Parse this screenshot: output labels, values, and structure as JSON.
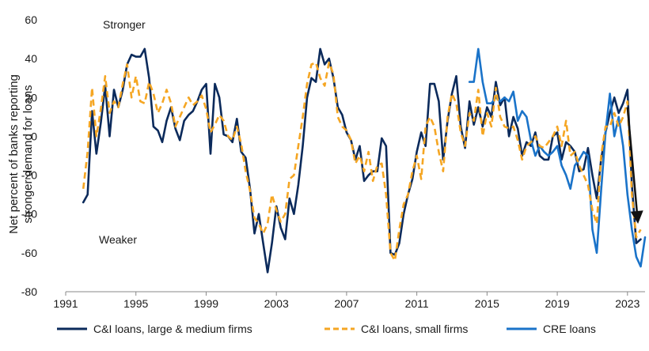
{
  "chart_data": {
    "type": "line",
    "ylabel_lines": [
      "Net percent of banks reporting",
      "stronger demand for loans"
    ],
    "xlim": [
      1991,
      2024
    ],
    "ylim": [
      -80,
      60
    ],
    "x_ticks": [
      1991,
      1995,
      1999,
      2003,
      2007,
      2011,
      2015,
      2019,
      2023
    ],
    "y_ticks": [
      -80,
      -60,
      -40,
      -20,
      0,
      20,
      40,
      60
    ],
    "annotations": {
      "upper": "Stronger",
      "lower": "Weaker"
    },
    "arrow": {
      "from": [
        2023.0,
        15
      ],
      "to": [
        2023.6,
        -45
      ],
      "color": "#111111"
    },
    "legend_position": "bottom",
    "series": [
      {
        "name": "C&I loans, large & medium firms",
        "color": "#0b2a5b",
        "style": "solid",
        "points": [
          [
            1992.0,
            -34
          ],
          [
            1992.25,
            -30
          ],
          [
            1992.5,
            13
          ],
          [
            1992.75,
            -9
          ],
          [
            1993.0,
            7
          ],
          [
            1993.25,
            26
          ],
          [
            1993.5,
            0
          ],
          [
            1993.75,
            24
          ],
          [
            1994.0,
            15
          ],
          [
            1994.25,
            24
          ],
          [
            1994.5,
            37
          ],
          [
            1994.75,
            42
          ],
          [
            1995.0,
            41
          ],
          [
            1995.25,
            41
          ],
          [
            1995.5,
            45
          ],
          [
            1995.75,
            30
          ],
          [
            1996.0,
            5
          ],
          [
            1996.25,
            3
          ],
          [
            1996.5,
            -3
          ],
          [
            1996.75,
            8
          ],
          [
            1997.0,
            15
          ],
          [
            1997.25,
            4
          ],
          [
            1997.5,
            -2
          ],
          [
            1997.75,
            8
          ],
          [
            1998.0,
            11
          ],
          [
            1998.25,
            13
          ],
          [
            1998.5,
            18
          ],
          [
            1998.75,
            24
          ],
          [
            1999.0,
            27
          ],
          [
            1999.25,
            -9
          ],
          [
            1999.5,
            27
          ],
          [
            1999.75,
            20
          ],
          [
            2000.0,
            1
          ],
          [
            2000.25,
            0
          ],
          [
            2000.5,
            -3
          ],
          [
            2000.75,
            9
          ],
          [
            2001.0,
            -8
          ],
          [
            2001.25,
            -11
          ],
          [
            2001.5,
            -27
          ],
          [
            2001.75,
            -50
          ],
          [
            2002.0,
            -40
          ],
          [
            2002.25,
            -55
          ],
          [
            2002.5,
            -70
          ],
          [
            2002.75,
            -55
          ],
          [
            2003.0,
            -36
          ],
          [
            2003.25,
            -47
          ],
          [
            2003.5,
            -53
          ],
          [
            2003.75,
            -32
          ],
          [
            2004.0,
            -40
          ],
          [
            2004.25,
            -25
          ],
          [
            2004.5,
            -5
          ],
          [
            2004.75,
            20
          ],
          [
            2005.0,
            30
          ],
          [
            2005.25,
            28
          ],
          [
            2005.5,
            45
          ],
          [
            2005.75,
            37
          ],
          [
            2006.0,
            40
          ],
          [
            2006.25,
            30
          ],
          [
            2006.5,
            15
          ],
          [
            2006.75,
            11
          ],
          [
            2007.0,
            2
          ],
          [
            2007.25,
            -2
          ],
          [
            2007.5,
            -12
          ],
          [
            2007.75,
            -5
          ],
          [
            2008.0,
            -23
          ],
          [
            2008.25,
            -20
          ],
          [
            2008.5,
            -18
          ],
          [
            2008.75,
            -18
          ],
          [
            2009.0,
            -1
          ],
          [
            2009.25,
            -5
          ],
          [
            2009.5,
            -60
          ],
          [
            2009.75,
            -61
          ],
          [
            2010.0,
            -55
          ],
          [
            2010.25,
            -40
          ],
          [
            2010.5,
            -30
          ],
          [
            2010.75,
            -22
          ],
          [
            2011.0,
            -8
          ],
          [
            2011.25,
            2
          ],
          [
            2011.5,
            -5
          ],
          [
            2011.75,
            27
          ],
          [
            2012.0,
            27
          ],
          [
            2012.25,
            18
          ],
          [
            2012.5,
            -12
          ],
          [
            2012.75,
            8
          ],
          [
            2013.0,
            22
          ],
          [
            2013.25,
            31
          ],
          [
            2013.5,
            5
          ],
          [
            2013.75,
            -6
          ],
          [
            2014.0,
            18
          ],
          [
            2014.25,
            6
          ],
          [
            2014.5,
            15
          ],
          [
            2014.75,
            5
          ],
          [
            2015.0,
            15
          ],
          [
            2015.25,
            10
          ],
          [
            2015.5,
            28
          ],
          [
            2015.75,
            16
          ],
          [
            2016.0,
            20
          ],
          [
            2016.25,
            0
          ],
          [
            2016.5,
            10
          ],
          [
            2016.75,
            4
          ],
          [
            2017.0,
            -10
          ],
          [
            2017.25,
            -3
          ],
          [
            2017.5,
            -5
          ],
          [
            2017.75,
            2
          ],
          [
            2018.0,
            -10
          ],
          [
            2018.25,
            -12
          ],
          [
            2018.5,
            -12
          ],
          [
            2018.75,
            0
          ],
          [
            2019.0,
            2
          ],
          [
            2019.25,
            -12
          ],
          [
            2019.5,
            -3
          ],
          [
            2019.75,
            -5
          ],
          [
            2020.0,
            -8
          ],
          [
            2020.25,
            -18
          ],
          [
            2020.5,
            -17
          ],
          [
            2020.75,
            -6
          ],
          [
            2021.0,
            -20
          ],
          [
            2021.25,
            -32
          ],
          [
            2021.5,
            -12
          ],
          [
            2021.75,
            2
          ],
          [
            2022.0,
            12
          ],
          [
            2022.25,
            20
          ],
          [
            2022.5,
            12
          ],
          [
            2022.75,
            17
          ],
          [
            2023.0,
            24
          ],
          [
            2023.25,
            -25
          ],
          [
            2023.5,
            -55
          ],
          [
            2023.75,
            -53
          ]
        ]
      },
      {
        "name": "C&I loans, small firms",
        "color": "#f5a623",
        "style": "dashed",
        "points": [
          [
            1992.0,
            -27
          ],
          [
            1992.25,
            -8
          ],
          [
            1992.5,
            25
          ],
          [
            1992.75,
            0
          ],
          [
            1993.0,
            14
          ],
          [
            1993.25,
            31
          ],
          [
            1993.5,
            12
          ],
          [
            1993.75,
            18
          ],
          [
            1994.0,
            15
          ],
          [
            1994.25,
            27
          ],
          [
            1994.5,
            37
          ],
          [
            1994.75,
            20
          ],
          [
            1995.0,
            31
          ],
          [
            1995.25,
            18
          ],
          [
            1995.5,
            17
          ],
          [
            1995.75,
            28
          ],
          [
            1996.0,
            22
          ],
          [
            1996.25,
            12
          ],
          [
            1996.5,
            17
          ],
          [
            1996.75,
            24
          ],
          [
            1997.0,
            17
          ],
          [
            1997.25,
            5
          ],
          [
            1997.5,
            10
          ],
          [
            1997.75,
            15
          ],
          [
            1998.0,
            20
          ],
          [
            1998.25,
            16
          ],
          [
            1998.5,
            18
          ],
          [
            1998.75,
            21
          ],
          [
            1999.0,
            14
          ],
          [
            1999.25,
            2
          ],
          [
            1999.5,
            6
          ],
          [
            1999.75,
            11
          ],
          [
            2000.0,
            8
          ],
          [
            2000.25,
            0
          ],
          [
            2000.5,
            -2
          ],
          [
            2000.75,
            5
          ],
          [
            2001.0,
            -4
          ],
          [
            2001.25,
            -18
          ],
          [
            2001.5,
            -28
          ],
          [
            2001.75,
            -42
          ],
          [
            2002.0,
            -45
          ],
          [
            2002.25,
            -50
          ],
          [
            2002.5,
            -45
          ],
          [
            2002.75,
            -30
          ],
          [
            2003.0,
            -38
          ],
          [
            2003.25,
            -44
          ],
          [
            2003.5,
            -40
          ],
          [
            2003.75,
            -22
          ],
          [
            2004.0,
            -20
          ],
          [
            2004.25,
            -5
          ],
          [
            2004.5,
            10
          ],
          [
            2004.75,
            27
          ],
          [
            2005.0,
            37
          ],
          [
            2005.25,
            38
          ],
          [
            2005.5,
            30
          ],
          [
            2005.75,
            26
          ],
          [
            2006.0,
            38
          ],
          [
            2006.25,
            32
          ],
          [
            2006.5,
            10
          ],
          [
            2006.75,
            5
          ],
          [
            2007.0,
            3
          ],
          [
            2007.25,
            -2
          ],
          [
            2007.5,
            -14
          ],
          [
            2007.75,
            -10
          ],
          [
            2008.0,
            -18
          ],
          [
            2008.25,
            -8
          ],
          [
            2008.5,
            -23
          ],
          [
            2008.75,
            -15
          ],
          [
            2009.0,
            -14
          ],
          [
            2009.25,
            -30
          ],
          [
            2009.5,
            -60
          ],
          [
            2009.75,
            -64
          ],
          [
            2010.0,
            -48
          ],
          [
            2010.25,
            -35
          ],
          [
            2010.5,
            -30
          ],
          [
            2010.75,
            -18
          ],
          [
            2011.0,
            -10
          ],
          [
            2011.25,
            -22
          ],
          [
            2011.5,
            5
          ],
          [
            2011.75,
            10
          ],
          [
            2012.0,
            5
          ],
          [
            2012.25,
            -8
          ],
          [
            2012.5,
            -18
          ],
          [
            2012.75,
            10
          ],
          [
            2013.0,
            22
          ],
          [
            2013.25,
            17
          ],
          [
            2013.5,
            2
          ],
          [
            2013.75,
            -5
          ],
          [
            2014.0,
            12
          ],
          [
            2014.25,
            8
          ],
          [
            2014.5,
            24
          ],
          [
            2014.75,
            0
          ],
          [
            2015.0,
            12
          ],
          [
            2015.25,
            5
          ],
          [
            2015.5,
            25
          ],
          [
            2015.75,
            10
          ],
          [
            2016.0,
            5
          ],
          [
            2016.25,
            4
          ],
          [
            2016.5,
            5
          ],
          [
            2016.75,
            -2
          ],
          [
            2017.0,
            -12
          ],
          [
            2017.25,
            -5
          ],
          [
            2017.5,
            -3
          ],
          [
            2017.75,
            0
          ],
          [
            2018.0,
            -5
          ],
          [
            2018.25,
            -6
          ],
          [
            2018.5,
            -3
          ],
          [
            2018.75,
            0
          ],
          [
            2019.0,
            5
          ],
          [
            2019.25,
            -5
          ],
          [
            2019.5,
            8
          ],
          [
            2019.75,
            -10
          ],
          [
            2020.0,
            -8
          ],
          [
            2020.25,
            -15
          ],
          [
            2020.5,
            -20
          ],
          [
            2020.75,
            -25
          ],
          [
            2021.0,
            -38
          ],
          [
            2021.25,
            -45
          ],
          [
            2021.5,
            -10
          ],
          [
            2021.75,
            5
          ],
          [
            2022.0,
            5
          ],
          [
            2022.25,
            12
          ],
          [
            2022.5,
            5
          ],
          [
            2022.75,
            10
          ],
          [
            2023.0,
            18
          ],
          [
            2023.25,
            -30
          ],
          [
            2023.5,
            -52
          ],
          [
            2023.75,
            -48
          ]
        ]
      },
      {
        "name": "CRE loans",
        "color": "#1a73c9",
        "style": "solid",
        "points": [
          [
            2014.0,
            28
          ],
          [
            2014.25,
            28
          ],
          [
            2014.5,
            45
          ],
          [
            2014.75,
            28
          ],
          [
            2015.0,
            17
          ],
          [
            2015.25,
            17
          ],
          [
            2015.5,
            20
          ],
          [
            2015.75,
            18
          ],
          [
            2016.0,
            20
          ],
          [
            2016.25,
            18
          ],
          [
            2016.5,
            23
          ],
          [
            2016.75,
            8
          ],
          [
            2017.0,
            13
          ],
          [
            2017.25,
            10
          ],
          [
            2017.5,
            -2
          ],
          [
            2017.75,
            -10
          ],
          [
            2018.0,
            -5
          ],
          [
            2018.25,
            -8
          ],
          [
            2018.5,
            -10
          ],
          [
            2018.75,
            -8
          ],
          [
            2019.0,
            -5
          ],
          [
            2019.25,
            -15
          ],
          [
            2019.5,
            -20
          ],
          [
            2019.75,
            -27
          ],
          [
            2020.0,
            -15
          ],
          [
            2020.25,
            -12
          ],
          [
            2020.5,
            -8
          ],
          [
            2020.75,
            -10
          ],
          [
            2021.0,
            -48
          ],
          [
            2021.25,
            -60
          ],
          [
            2021.5,
            -28
          ],
          [
            2021.75,
            2
          ],
          [
            2022.0,
            22
          ],
          [
            2022.25,
            0
          ],
          [
            2022.5,
            10
          ],
          [
            2022.75,
            -5
          ],
          [
            2023.0,
            -30
          ],
          [
            2023.25,
            -48
          ],
          [
            2023.5,
            -62
          ],
          [
            2023.75,
            -67
          ],
          [
            2024.0,
            -52
          ]
        ]
      }
    ]
  }
}
